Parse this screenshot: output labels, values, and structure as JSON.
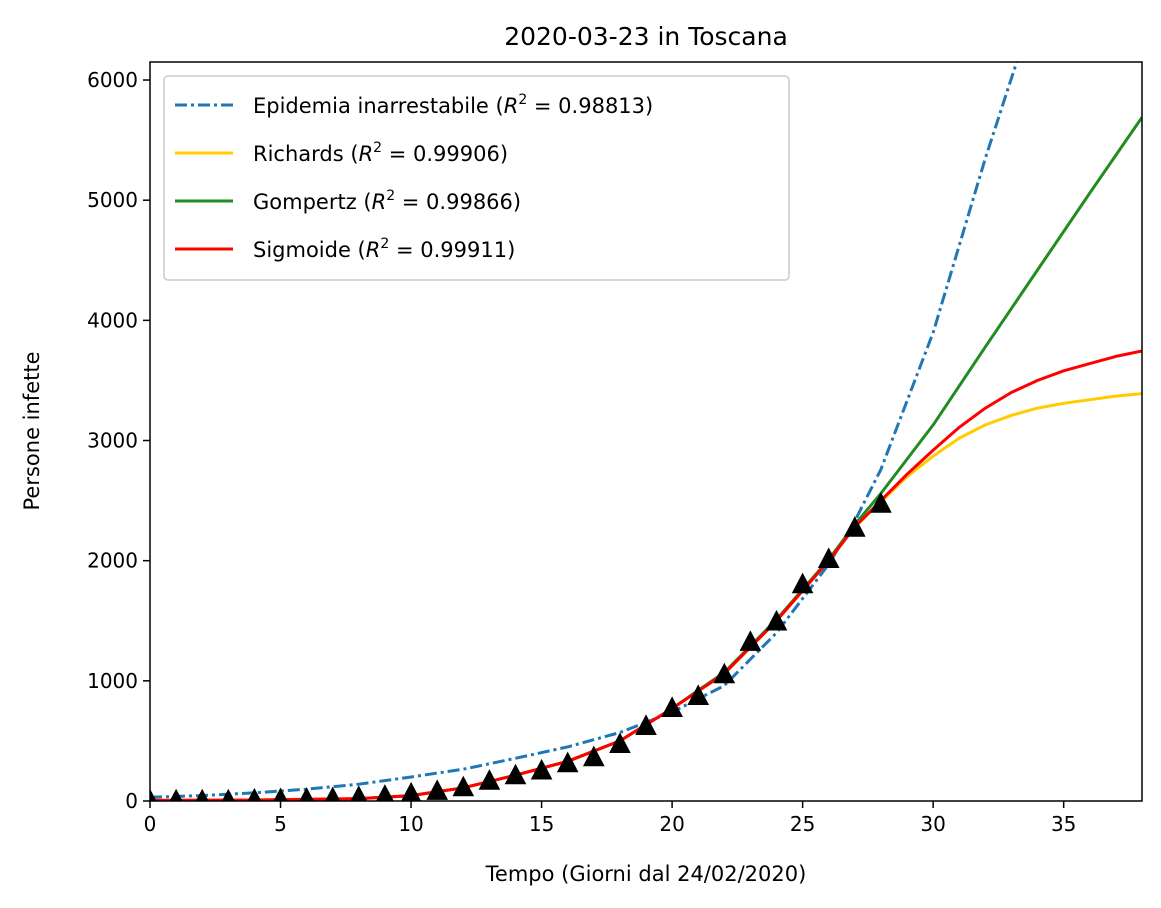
{
  "chart_data": {
    "type": "line",
    "title": "2020-03-23 in Toscana",
    "xlabel": "Tempo (Giorni dal 24/02/2020)",
    "ylabel": "Persone infette",
    "xlim": [
      0,
      38
    ],
    "ylim": [
      0,
      6150
    ],
    "xticks": [
      0,
      5,
      10,
      15,
      20,
      25,
      30,
      35
    ],
    "yticks": [
      0,
      1000,
      2000,
      3000,
      4000,
      5000,
      6000
    ],
    "grid": false,
    "legend_position": "top-left",
    "series": [
      {
        "name": "Epidemia inarrestabile",
        "r2": "0.98813",
        "style": "dashdot",
        "color": "#1f77b4",
        "x": [
          0,
          2,
          4,
          6,
          8,
          10,
          12,
          14,
          16,
          18,
          20,
          22,
          24,
          26,
          27,
          28,
          30,
          32,
          33.2
        ],
        "y": [
          32,
          45,
          68,
          98,
          140,
          200,
          265,
          355,
          450,
          570,
          740,
          960,
          1400,
          1970,
          2330,
          2760,
          3900,
          5350,
          6150
        ]
      },
      {
        "name": "Richards",
        "r2": "0.99906",
        "style": "solid",
        "color": "#ffcc00",
        "x": [
          0,
          4,
          8,
          10,
          12,
          14,
          16,
          18,
          20,
          22,
          24,
          26,
          27,
          28,
          29,
          30,
          31,
          32,
          33,
          34,
          35,
          36,
          37,
          38
        ],
        "y": [
          5,
          8,
          20,
          45,
          110,
          215,
          330,
          500,
          770,
          1060,
          1500,
          2000,
          2280,
          2490,
          2700,
          2870,
          3020,
          3130,
          3210,
          3270,
          3310,
          3340,
          3370,
          3390
        ]
      },
      {
        "name": "Gompertz",
        "r2": "0.99866",
        "style": "solid",
        "color": "#228b22",
        "x": [
          0,
          4,
          8,
          10,
          12,
          14,
          16,
          18,
          20,
          22,
          24,
          26,
          27,
          28,
          30,
          32,
          34,
          36,
          38
        ],
        "y": [
          0,
          3,
          18,
          45,
          110,
          215,
          330,
          500,
          770,
          1070,
          1510,
          2010,
          2300,
          2560,
          3130,
          3780,
          4420,
          5060,
          5690
        ]
      },
      {
        "name": "Sigmoide",
        "r2": "0.99911",
        "style": "solid",
        "color": "#ff0000",
        "x": [
          0,
          4,
          8,
          10,
          12,
          14,
          16,
          18,
          20,
          22,
          24,
          26,
          27,
          28,
          29,
          30,
          31,
          32,
          33,
          34,
          35,
          36,
          37,
          38
        ],
        "y": [
          5,
          8,
          20,
          45,
          110,
          215,
          330,
          500,
          770,
          1060,
          1500,
          2000,
          2280,
          2500,
          2720,
          2920,
          3110,
          3270,
          3400,
          3500,
          3580,
          3640,
          3700,
          3745
        ]
      }
    ],
    "observations": {
      "marker": "triangle",
      "color": "#000000",
      "x": [
        0,
        1,
        2,
        3,
        4,
        5,
        6,
        7,
        8,
        9,
        10,
        11,
        12,
        13,
        14,
        15,
        16,
        17,
        18,
        19,
        20,
        21,
        22,
        23,
        24,
        25,
        26,
        27,
        28
      ],
      "y": [
        2,
        2,
        2,
        2,
        8,
        12,
        15,
        20,
        30,
        40,
        58,
        80,
        110,
        165,
        210,
        250,
        310,
        360,
        470,
        620,
        770,
        870,
        1050,
        1320,
        1490,
        1800,
        2010,
        2270,
        2470
      ]
    }
  }
}
